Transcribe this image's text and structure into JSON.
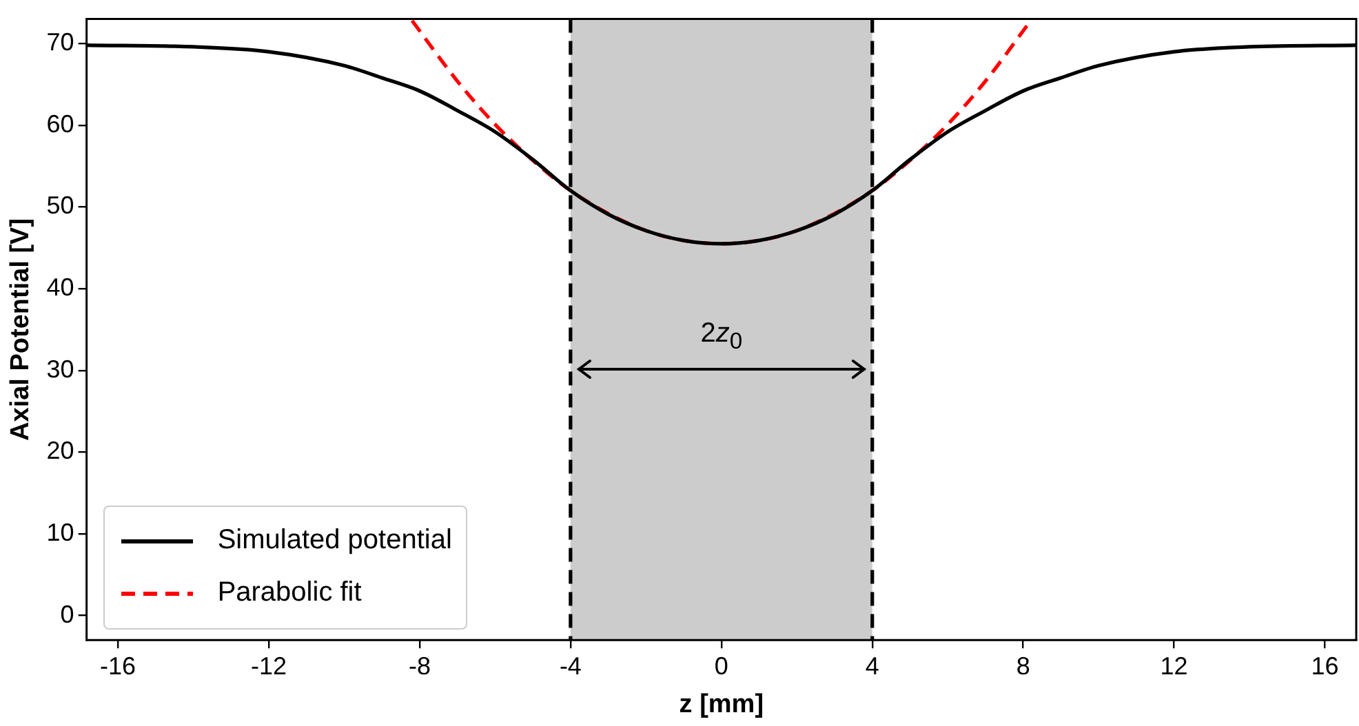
{
  "chart_data": {
    "type": "line",
    "xlabel": "z [mm]",
    "ylabel": "Axial Potential [V]",
    "xlim": [
      -16.83,
      16.83
    ],
    "ylim": [
      -3,
      73
    ],
    "xticks": [
      -16,
      -12,
      -8,
      -4,
      0,
      4,
      8,
      12,
      16
    ],
    "yticks": [
      0,
      10,
      20,
      30,
      40,
      50,
      60,
      70
    ],
    "grid": false,
    "legend": "bottom left",
    "marker": "none",
    "series": [
      {
        "name": "Simulated potential",
        "color": "#000000",
        "line_style": "solid",
        "x": [
          -16.83,
          -14,
          -12,
          -10,
          -9,
          -8,
          -7,
          -6,
          -5,
          -4,
          -3,
          -2,
          -1,
          0,
          1,
          2,
          3,
          4,
          5,
          6,
          7,
          8,
          9,
          10,
          12,
          14,
          16.83
        ],
        "values": [
          69.8,
          69.6,
          69.0,
          67.3,
          65.8,
          64.2,
          61.8,
          59.2,
          55.8,
          52.0,
          49.1,
          47.1,
          45.9,
          45.5,
          45.9,
          47.1,
          49.1,
          52.0,
          55.8,
          59.2,
          61.8,
          64.2,
          65.8,
          67.3,
          69.0,
          69.6,
          69.8
        ]
      },
      {
        "name": "Parabolic fit",
        "color": "#ff0000",
        "line_style": "dashed",
        "x": [
          -8.2,
          -7,
          -6,
          -5,
          -4,
          -3,
          -2,
          -1,
          0,
          1,
          2,
          3,
          4,
          5,
          6,
          7,
          8.2
        ],
        "values": [
          72.8,
          65.4,
          60.1,
          55.7,
          52.0,
          49.2,
          47.1,
          45.9,
          45.5,
          45.9,
          47.1,
          49.2,
          52.0,
          55.7,
          60.1,
          65.4,
          72.8
        ]
      }
    ],
    "bands": [
      {
        "axis": "x",
        "from": -4,
        "to": 4,
        "color": "#cccccc"
      }
    ],
    "ref_lines": [
      {
        "axis": "x",
        "value": -4,
        "color": "#000000",
        "line_style": "dashed"
      },
      {
        "axis": "x",
        "value": 4,
        "color": "#000000",
        "line_style": "dashed"
      }
    ],
    "annotations": [
      "2z$_{0}$"
    ]
  }
}
